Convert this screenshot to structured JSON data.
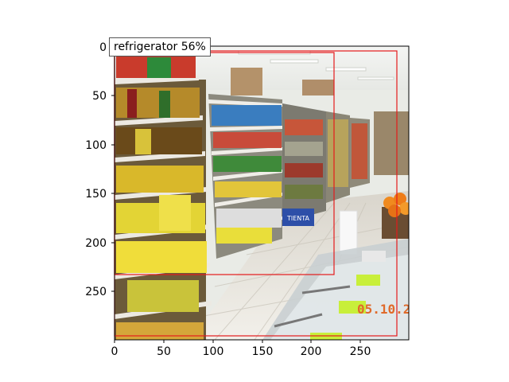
{
  "detections": [
    {
      "class_label": "refrigerator",
      "confidence": "56%",
      "box_color": "#e41a1c"
    }
  ],
  "detection_label_text": "refrigerator 56%",
  "axes": {
    "x_ticks": [
      "0",
      "50",
      "100",
      "150",
      "200",
      "250"
    ],
    "y_ticks": [
      "0",
      "50",
      "100",
      "150",
      "200",
      "250"
    ]
  },
  "scene": {
    "description_icons": [
      "store-shelves",
      "price-sign-tienta",
      "oranges-display"
    ],
    "timestamp_overlay": "05.10.2"
  },
  "colors": {
    "detection_box": "#e41a1c",
    "timestamp": "#e06a2a",
    "axis": "#000000"
  }
}
